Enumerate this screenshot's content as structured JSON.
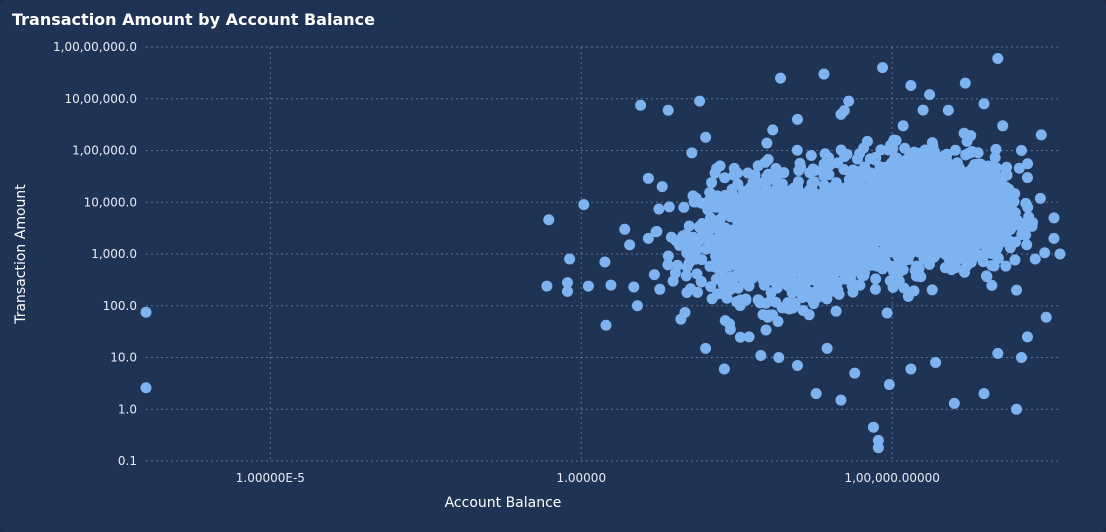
{
  "chart_data": {
    "type": "scatter",
    "title": "Transaction Amount by Account Balance",
    "xlabel": "Account Balance",
    "ylabel": "Transaction Amount",
    "xscale": "log",
    "yscale": "log",
    "xlim": [
      1e-07,
      50000000.0
    ],
    "ylim": [
      0.1,
      10000000
    ],
    "grid": true,
    "colors": {
      "point": "#7db3f0",
      "background": "#1f3354"
    },
    "xticks": [
      {
        "value": 1e-05,
        "label": "1.00000E-5"
      },
      {
        "value": 1,
        "label": "1.00000"
      },
      {
        "value": 100000,
        "label": "1,00,000.00000"
      }
    ],
    "yticks": [
      {
        "value": 10000000,
        "label": "1,00,00,000.0"
      },
      {
        "value": 1000000,
        "label": "10,00,000.0"
      },
      {
        "value": 100000,
        "label": "1,00,000.0"
      },
      {
        "value": 10000,
        "label": "10,000.0"
      },
      {
        "value": 1000,
        "label": "1,000.0"
      },
      {
        "value": 100,
        "label": "100.0"
      },
      {
        "value": 10,
        "label": "10.0"
      },
      {
        "value": 1,
        "label": "1.0"
      },
      {
        "value": 0.1,
        "label": "0.1"
      }
    ],
    "points": [
      [
        1e-07,
        75
      ],
      [
        1e-07,
        2.6
      ],
      [
        0.3,
        4600
      ],
      [
        0.28,
        240
      ],
      [
        0.6,
        280
      ],
      [
        0.6,
        190
      ],
      [
        0.65,
        800
      ],
      [
        1.1,
        9000
      ],
      [
        1.3,
        240
      ],
      [
        2.4,
        700
      ],
      [
        3.0,
        250
      ],
      [
        2.5,
        42
      ],
      [
        5,
        3000
      ],
      [
        6,
        1500
      ],
      [
        7,
        230
      ],
      [
        8,
        100
      ],
      [
        12,
        2000
      ],
      [
        15,
        400
      ],
      [
        9,
        750000
      ],
      [
        12,
        29000
      ],
      [
        20,
        20000
      ],
      [
        25,
        600000
      ],
      [
        30,
        300
      ],
      [
        40,
        55
      ],
      [
        60,
        90000
      ],
      [
        80,
        900000
      ],
      [
        100,
        180000
      ],
      [
        120,
        5000
      ],
      [
        150,
        45000
      ],
      [
        200,
        1200
      ],
      [
        250,
        35
      ],
      [
        300,
        2500
      ],
      [
        400,
        600
      ],
      [
        500,
        15000
      ],
      [
        700,
        3500
      ],
      [
        900,
        9000
      ],
      [
        1200,
        250000
      ],
      [
        1600,
        2500000
      ],
      [
        2000,
        700
      ],
      [
        3000,
        20000
      ],
      [
        4000,
        3000
      ],
      [
        5000,
        80000
      ],
      [
        7000,
        600
      ],
      [
        9000,
        1500
      ],
      [
        12000,
        4000
      ],
      [
        15000,
        500000
      ],
      [
        20000,
        8000
      ],
      [
        30000,
        2000
      ],
      [
        40000,
        150000
      ],
      [
        60000,
        1000
      ],
      [
        80000,
        6000
      ],
      [
        100000,
        50000
      ],
      [
        130000,
        300
      ],
      [
        160000,
        12000
      ],
      [
        200000,
        1800000
      ],
      [
        300000,
        3000
      ],
      [
        400000,
        900
      ],
      [
        500000,
        25000
      ],
      [
        700000,
        70000
      ],
      [
        900000,
        500
      ],
      [
        1200000,
        8000
      ],
      [
        1600000,
        150000
      ],
      [
        2000000,
        2000
      ],
      [
        3000000,
        40000
      ],
      [
        4000000,
        600
      ],
      [
        5000000,
        6000000
      ],
      [
        6000000,
        12000
      ],
      [
        8000000,
        3000
      ],
      [
        10000000,
        200
      ],
      [
        12000000,
        10
      ],
      [
        15000000,
        30000
      ],
      [
        20000000,
        800
      ],
      [
        30000000,
        60
      ],
      [
        40000000,
        2000
      ],
      [
        50000000,
        1000
      ],
      [
        1500,
        10
      ],
      [
        3000,
        7
      ],
      [
        6000,
        2
      ],
      [
        9000,
        15
      ],
      [
        15000,
        1.5
      ],
      [
        25000,
        5
      ],
      [
        50000,
        0.45
      ],
      [
        60000,
        0.25
      ],
      [
        60000,
        0.18
      ],
      [
        90000,
        3
      ],
      [
        200000,
        6
      ],
      [
        500000,
        8
      ],
      [
        1000000,
        1.3
      ],
      [
        3000000,
        2
      ],
      [
        5000000,
        12
      ],
      [
        10000000,
        1.0
      ],
      [
        15000000,
        25
      ],
      [
        500,
        25
      ],
      [
        1000,
        60
      ],
      [
        200,
        6
      ],
      [
        100,
        15
      ],
      [
        50,
        180
      ],
      [
        3000,
        400000
      ],
      [
        8000,
        3000000
      ],
      [
        20000,
        900000
      ],
      [
        70000,
        4000000
      ],
      [
        150000,
        300000
      ],
      [
        400000,
        1200000
      ],
      [
        800000,
        600000
      ],
      [
        1500000,
        2000000
      ],
      [
        3000000,
        800000
      ],
      [
        6000000,
        300000
      ],
      [
        12000000,
        100000
      ],
      [
        25000000,
        200000
      ],
      [
        40000000,
        5000
      ]
    ]
  }
}
